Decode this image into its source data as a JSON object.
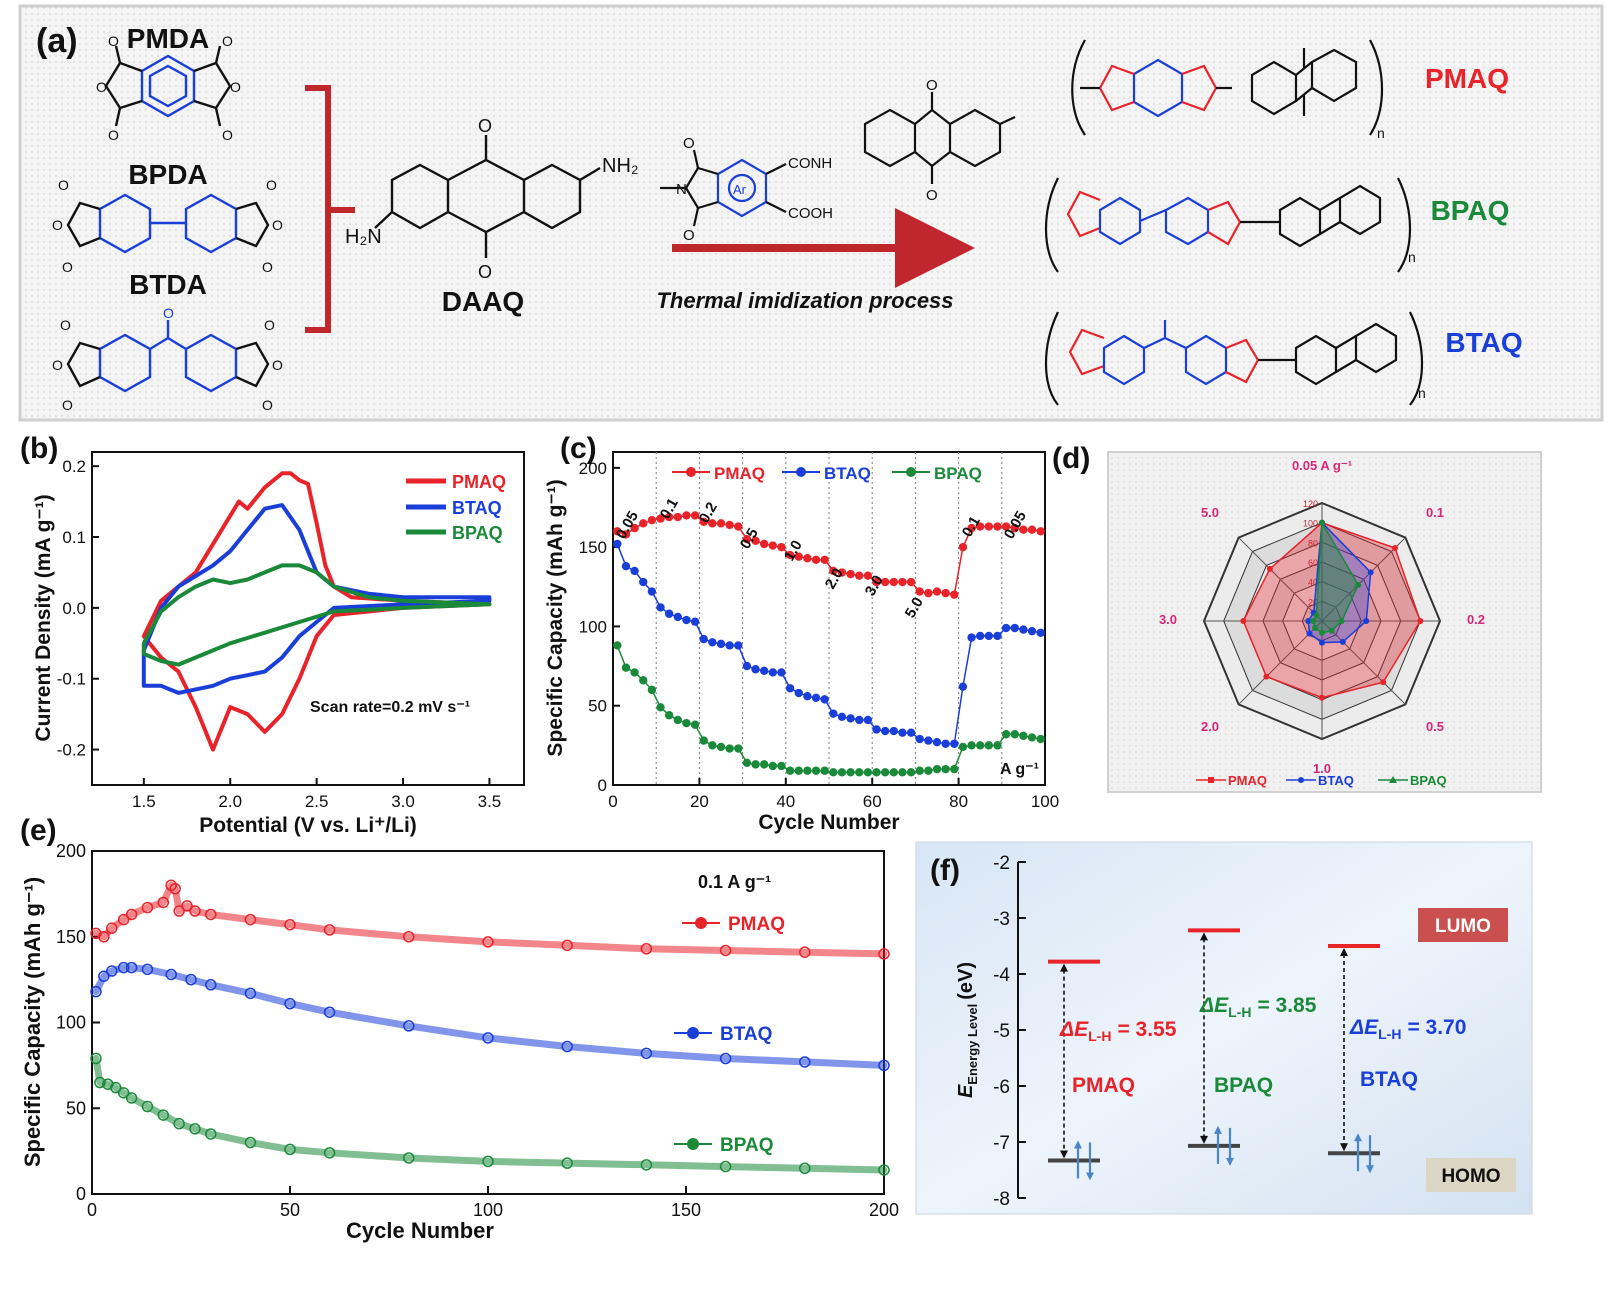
{
  "panel_a": {
    "label": "(a)",
    "monomers": [
      "PMDA",
      "BPDA",
      "BTDA"
    ],
    "diamine": "DAAQ",
    "amine_left": "H₂N",
    "amine_right": "NH₂",
    "intermediate": {
      "ar": "Ar",
      "conh": "CONH",
      "cooh": "COOH"
    },
    "process": "Thermal imidization process",
    "polymers": [
      {
        "name": "PMAQ",
        "color": "#e8232a"
      },
      {
        "name": "BPAQ",
        "color": "#1a8a3a"
      },
      {
        "name": "BTAQ",
        "color": "#1a3ed8"
      }
    ],
    "n": "n"
  },
  "panel_b": {
    "label": "(b)",
    "legend": [
      "PMAQ",
      "BTAQ",
      "BPAQ"
    ],
    "xlabel": "Potential (V vs. Li⁺/Li)",
    "ylabel": "Current Density (mA g⁻¹)",
    "annotation": "Scan rate=0.2 mV s⁻¹",
    "xticks": [
      "1.5",
      "2.0",
      "2.5",
      "3.0",
      "3.5"
    ],
    "yticks": [
      "0.2",
      "0.1",
      "0.0",
      "-0.1",
      "-0.2"
    ]
  },
  "panel_c": {
    "label": "(c)",
    "legend": [
      "PMAQ",
      "BTAQ",
      "BPAQ"
    ],
    "xlabel": "Cycle Number",
    "ylabel": "Specific Capacity (mAh g⁻¹)",
    "unit_note": "A g⁻¹",
    "rate_labels": [
      "0.05",
      "0.1",
      "0.2",
      "0.5",
      "1.0",
      "2.0",
      "3.0",
      "5.0",
      "0.1",
      "0.05"
    ],
    "xticks": [
      "0",
      "20",
      "40",
      "60",
      "80",
      "100"
    ],
    "yticks": [
      "0",
      "50",
      "100",
      "150",
      "200"
    ]
  },
  "panel_d": {
    "label": "(d)",
    "axes": [
      "0.05 A g⁻¹",
      "0.1",
      "0.2",
      "0.5",
      "1.0",
      "2.0",
      "3.0",
      "5.0"
    ],
    "rings": [
      "120",
      "100",
      "80",
      "60",
      "40",
      "20"
    ],
    "legend": [
      "PMAQ",
      "BTAQ",
      "BPAQ"
    ]
  },
  "panel_e": {
    "label": "(e)",
    "annotation": "0.1 A g⁻¹",
    "legend": [
      "PMAQ",
      "BTAQ",
      "BPAQ"
    ],
    "xlabel": "Cycle Number",
    "ylabel": "Specific Capacity (mAh g⁻¹)",
    "xticks": [
      "0",
      "50",
      "100",
      "150",
      "200"
    ],
    "yticks": [
      "0",
      "50",
      "100",
      "150",
      "200"
    ]
  },
  "panel_f": {
    "label": "(f)",
    "ylabel_main": "E",
    "ylabel_sub": "Energy Level",
    "ylabel_unit": "(eV)",
    "yticks": [
      "-2",
      "-3",
      "-4",
      "-5",
      "-6",
      "-7",
      "-8"
    ],
    "lumo": "LUMO",
    "homo": "HOMO",
    "gaps": [
      {
        "name": "PMAQ",
        "delta": "ΔE",
        "sub": "L-H",
        "value": "= 3.55",
        "color": "#e8232a"
      },
      {
        "name": "BPAQ",
        "delta": "ΔE",
        "sub": "L-H",
        "value": "= 3.85",
        "color": "#1a8a3a"
      },
      {
        "name": "BTAQ",
        "delta": "ΔE",
        "sub": "L-H",
        "value": "= 3.70",
        "color": "#1a3ed8"
      }
    ]
  },
  "chart_data": [
    {
      "type": "line",
      "title": "",
      "xlabel": "Potential (V vs. Li⁺/Li)",
      "ylabel": "Current Density (mA g⁻¹)",
      "xlim": [
        1.2,
        3.7
      ],
      "ylim": [
        -0.25,
        0.22
      ],
      "series": [
        {
          "name": "PMAQ",
          "color": "#e8232a",
          "x": [
            1.5,
            1.6,
            1.7,
            1.8,
            1.9,
            2.0,
            2.05,
            2.1,
            2.2,
            2.3,
            2.35,
            2.4,
            2.45,
            2.5,
            2.55,
            2.6,
            2.7,
            3.0,
            3.5,
            3.5,
            3.0,
            2.6,
            2.5,
            2.4,
            2.3,
            2.2,
            2.1,
            2.0,
            1.9,
            1.8,
            1.7,
            1.6,
            1.5
          ],
          "y": [
            -0.04,
            0.01,
            0.03,
            0.05,
            0.09,
            0.13,
            0.15,
            0.14,
            0.17,
            0.19,
            0.19,
            0.18,
            0.175,
            0.12,
            0.06,
            0.03,
            0.015,
            0.01,
            0.005,
            0.005,
            0.0,
            -0.01,
            -0.04,
            -0.1,
            -0.15,
            -0.175,
            -0.15,
            -0.14,
            -0.2,
            -0.14,
            -0.09,
            -0.07,
            -0.04
          ]
        },
        {
          "name": "BTAQ",
          "color": "#1a3ed8",
          "x": [
            1.5,
            1.6,
            1.7,
            1.8,
            1.9,
            2.0,
            2.1,
            2.2,
            2.3,
            2.4,
            2.5,
            2.6,
            2.8,
            3.0,
            3.5,
            3.5,
            3.0,
            2.6,
            2.5,
            2.4,
            2.3,
            2.2,
            2.1,
            2.0,
            1.9,
            1.8,
            1.7,
            1.6,
            1.5
          ],
          "y": [
            -0.06,
            0.0,
            0.03,
            0.045,
            0.06,
            0.08,
            0.11,
            0.14,
            0.145,
            0.11,
            0.05,
            0.03,
            0.02,
            0.015,
            0.015,
            0.01,
            0.005,
            0.0,
            -0.02,
            -0.04,
            -0.07,
            -0.09,
            -0.095,
            -0.1,
            -0.11,
            -0.115,
            -0.12,
            -0.11,
            -0.11
          ]
        },
        {
          "name": "BPAQ",
          "color": "#1a8a3a",
          "x": [
            1.5,
            1.6,
            1.7,
            1.8,
            1.9,
            2.0,
            2.1,
            2.2,
            2.3,
            2.4,
            2.5,
            2.6,
            2.8,
            3.0,
            3.5,
            3.5,
            3.0,
            2.6,
            2.4,
            2.2,
            2.0,
            1.9,
            1.8,
            1.7,
            1.6,
            1.5
          ],
          "y": [
            -0.05,
            -0.005,
            0.015,
            0.03,
            0.04,
            0.035,
            0.04,
            0.05,
            0.06,
            0.06,
            0.05,
            0.03,
            0.015,
            0.01,
            0.005,
            0.005,
            0.0,
            -0.005,
            -0.02,
            -0.035,
            -0.05,
            -0.06,
            -0.07,
            -0.08,
            -0.075,
            -0.065
          ]
        }
      ]
    },
    {
      "type": "scatter",
      "title": "",
      "xlabel": "Cycle Number",
      "ylabel": "Specific Capacity (mAh g⁻¹)",
      "xlim": [
        0,
        100
      ],
      "ylim": [
        0,
        210
      ],
      "series": [
        {
          "name": "PMAQ",
          "color": "#e8232a",
          "x": [
            1,
            3,
            5,
            7,
            9,
            11,
            13,
            15,
            17,
            19,
            21,
            23,
            25,
            27,
            29,
            31,
            33,
            35,
            37,
            39,
            41,
            43,
            45,
            47,
            49,
            51,
            53,
            55,
            57,
            59,
            61,
            63,
            65,
            67,
            69,
            71,
            73,
            75,
            77,
            79,
            81,
            83,
            85,
            87,
            89,
            91,
            93,
            95,
            97,
            99
          ],
          "y": [
            160,
            158,
            162,
            165,
            167,
            168,
            169,
            169,
            170,
            170,
            166,
            165,
            165,
            164,
            163,
            155,
            154,
            152,
            151,
            150,
            145,
            144,
            143,
            142,
            142,
            135,
            134,
            133,
            132,
            132,
            128,
            128,
            128,
            128,
            128,
            122,
            121,
            122,
            121,
            120,
            150,
            162,
            163,
            163,
            163,
            163,
            162,
            161,
            161,
            160
          ]
        },
        {
          "name": "BTAQ",
          "color": "#1a3ed8",
          "x": [
            1,
            3,
            5,
            7,
            9,
            11,
            13,
            15,
            17,
            19,
            21,
            23,
            25,
            27,
            29,
            31,
            33,
            35,
            37,
            39,
            41,
            43,
            45,
            47,
            49,
            51,
            53,
            55,
            57,
            59,
            61,
            63,
            65,
            67,
            69,
            71,
            73,
            75,
            77,
            79,
            81,
            83,
            85,
            87,
            89,
            91,
            93,
            95,
            97,
            99
          ],
          "y": [
            152,
            138,
            135,
            128,
            122,
            112,
            108,
            106,
            104,
            103,
            92,
            90,
            89,
            88,
            88,
            75,
            73,
            72,
            71,
            71,
            61,
            58,
            56,
            55,
            54,
            45,
            43,
            42,
            41,
            41,
            35,
            34,
            34,
            33,
            33,
            29,
            28,
            27,
            26,
            26,
            62,
            93,
            94,
            94,
            94,
            99,
            99,
            98,
            97,
            96
          ]
        },
        {
          "name": "BPAQ",
          "color": "#1a8a3a",
          "x": [
            1,
            3,
            5,
            7,
            9,
            11,
            13,
            15,
            17,
            19,
            21,
            23,
            25,
            27,
            29,
            31,
            33,
            35,
            37,
            39,
            41,
            43,
            45,
            47,
            49,
            51,
            53,
            55,
            57,
            59,
            61,
            63,
            65,
            67,
            69,
            71,
            73,
            75,
            77,
            79,
            81,
            83,
            85,
            87,
            89,
            91,
            93,
            95,
            97,
            99
          ],
          "y": [
            88,
            74,
            71,
            66,
            60,
            49,
            44,
            41,
            39,
            38,
            28,
            25,
            24,
            23,
            23,
            14,
            13,
            13,
            12,
            12,
            9,
            9,
            9,
            9,
            9,
            8,
            8,
            8,
            8,
            8,
            8,
            8,
            8,
            8,
            8,
            9,
            9,
            10,
            10,
            10,
            24,
            25,
            25,
            25,
            25,
            32,
            32,
            31,
            30,
            29
          ]
        }
      ]
    },
    {
      "type": "radar",
      "title": "",
      "axes": [
        "0.05 A g⁻¹",
        "0.1",
        "0.2",
        "0.5",
        "1.0",
        "2.0",
        "3.0",
        "5.0"
      ],
      "rlim": [
        0,
        120
      ],
      "series": [
        {
          "name": "PMAQ",
          "color": "#e8232a",
          "values": [
            100,
            105,
            100,
            88,
            78,
            80,
            80,
            75
          ]
        },
        {
          "name": "BTAQ",
          "color": "#1a3ed8",
          "values": [
            100,
            70,
            45,
            30,
            22,
            18,
            14,
            12
          ]
        },
        {
          "name": "BPAQ",
          "color": "#1a8a3a",
          "values": [
            100,
            52,
            20,
            14,
            12,
            10,
            9,
            8
          ]
        }
      ]
    },
    {
      "type": "scatter",
      "title": "",
      "xlabel": "Cycle Number",
      "ylabel": "Specific Capacity (mAh g⁻¹)",
      "xlim": [
        0,
        200
      ],
      "ylim": [
        0,
        200
      ],
      "series": [
        {
          "name": "PMAQ",
          "color": "#e8232a",
          "x": [
            1,
            3,
            5,
            8,
            10,
            14,
            18,
            20,
            21,
            22,
            24,
            26,
            30,
            40,
            50,
            60,
            80,
            100,
            120,
            140,
            160,
            180,
            200
          ],
          "y": [
            152,
            150,
            155,
            160,
            163,
            167,
            170,
            180,
            178,
            165,
            168,
            165,
            163,
            160,
            157,
            154,
            150,
            147,
            145,
            143,
            142,
            141,
            140
          ]
        },
        {
          "name": "BTAQ",
          "color": "#1a3ed8",
          "x": [
            1,
            3,
            5,
            8,
            10,
            14,
            20,
            25,
            30,
            40,
            50,
            60,
            80,
            100,
            120,
            140,
            160,
            180,
            200
          ],
          "y": [
            118,
            127,
            130,
            132,
            132,
            131,
            128,
            125,
            122,
            117,
            111,
            106,
            98,
            91,
            86,
            82,
            79,
            77,
            75
          ]
        },
        {
          "name": "BPAQ",
          "color": "#1a8a3a",
          "x": [
            1,
            2,
            4,
            6,
            8,
            10,
            14,
            18,
            22,
            26,
            30,
            40,
            50,
            60,
            80,
            100,
            120,
            140,
            160,
            180,
            200
          ],
          "y": [
            79,
            65,
            64,
            62,
            59,
            56,
            51,
            46,
            41,
            38,
            35,
            30,
            26,
            24,
            21,
            19,
            18,
            17,
            16,
            15,
            14
          ]
        }
      ]
    },
    {
      "type": "energy-level",
      "title": "",
      "ylabel": "E Energy Level (eV)",
      "ylim": [
        -8,
        -2
      ],
      "series": [
        {
          "name": "PMAQ",
          "lumo": -3.78,
          "homo": -7.33,
          "gap": 3.55
        },
        {
          "name": "BPAQ",
          "lumo": -3.22,
          "homo": -7.07,
          "gap": 3.85
        },
        {
          "name": "BTAQ",
          "lumo": -3.5,
          "homo": -7.2,
          "gap": 3.7
        }
      ]
    }
  ]
}
